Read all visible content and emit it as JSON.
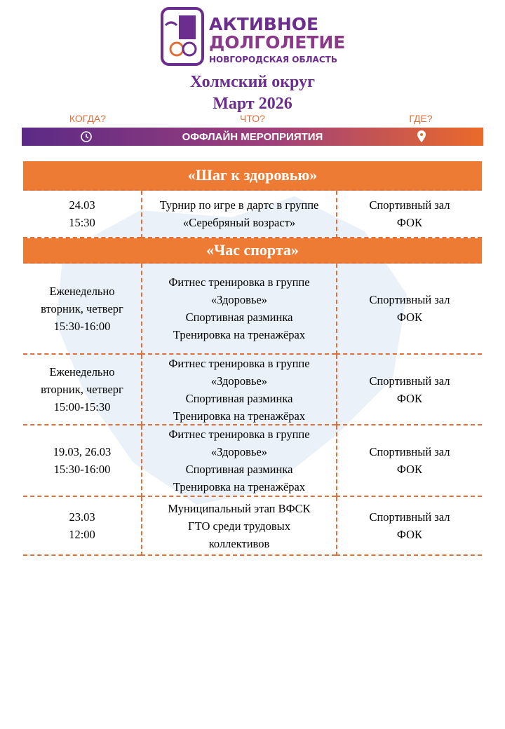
{
  "logo": {
    "line1": "АКТИВНОЕ",
    "line2": "ДОЛГОЛЕТИЕ",
    "line3": "НОВГОРОДСКАЯ ОБЛАСТЬ"
  },
  "header": {
    "title": "Холмский округ",
    "subtitle": "Март 2026",
    "when": "КОГДА?",
    "what": "ЧТО?",
    "where": "ГДЕ?",
    "banner": "ОФФЛАЙН МЕРОПРИЯТИЯ"
  },
  "sections": [
    {
      "title": "«Шаг к здоровью»",
      "rows": [
        {
          "when": [
            "24.03",
            "15:30"
          ],
          "what": [
            "Турнир по игре в дартс в группе",
            "«Серебряный возраст»"
          ],
          "where": [
            "Спортивный зал",
            "ФОК"
          ]
        }
      ]
    },
    {
      "title": "«Час спорта»",
      "rows": [
        {
          "when": [
            "Еженедельно",
            "вторник, четверг",
            "15:30-16:00"
          ],
          "what": [
            "Фитнес тренировка в группе",
            "«Здоровье»",
            "Спортивная разминка",
            "Тренировка на тренажёрах"
          ],
          "where": [
            "Спортивный зал",
            "ФОК"
          ]
        },
        {
          "when": [
            "Еженедельно",
            "вторник, четверг",
            "15:00-15:30"
          ],
          "what": [
            "Фитнес тренировка в группе",
            "«Здоровье»",
            "Спортивная разминка",
            "Тренировка на тренажёрах"
          ],
          "where": [
            "Спортивный зал",
            "ФОК"
          ]
        },
        {
          "when": [
            "19.03, 26.03",
            "15:30-16:00"
          ],
          "what": [
            "Фитнес тренировка в группе",
            "«Здоровье»",
            "Спортивная разминка",
            "Тренировка на тренажёрах"
          ],
          "where": [
            "Спортивный зал",
            "ФОК"
          ]
        },
        {
          "when": [
            "23.03",
            "12:00"
          ],
          "what": [
            "Муниципальный этап ВФСК",
            "ГТО среди трудовых",
            "коллективов"
          ],
          "where": [
            "Спортивный зал",
            "ФОК"
          ]
        }
      ]
    }
  ]
}
